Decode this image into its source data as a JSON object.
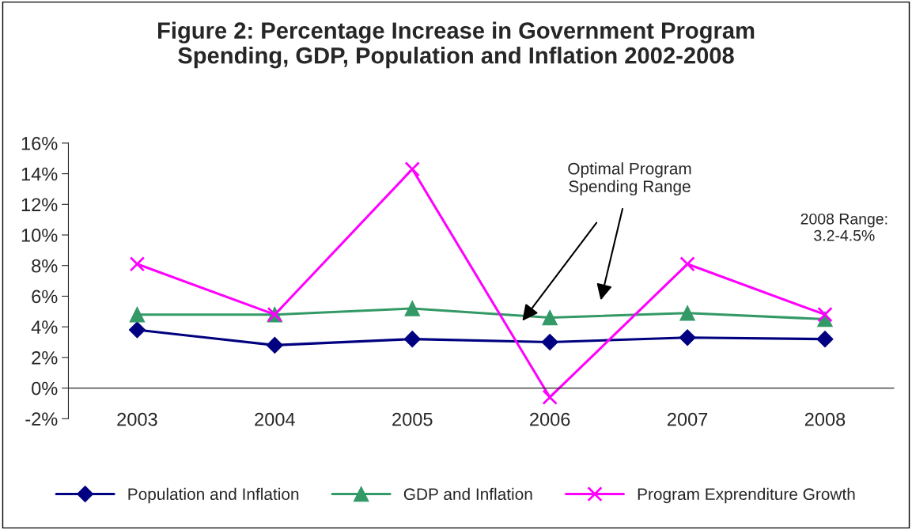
{
  "chart_data": {
    "type": "line",
    "title": "Figure 2: Percentage Increase in Government Program\nSpending, GDP, Population and Inflation 2002-2008",
    "categories": [
      "2003",
      "2004",
      "2005",
      "2006",
      "2007",
      "2008"
    ],
    "series": [
      {
        "name": "Population and Inflation",
        "color": "#000080",
        "marker": "diamond",
        "values": [
          3.8,
          2.8,
          3.2,
          3.0,
          3.3,
          3.2
        ]
      },
      {
        "name": "GDP and Inflation",
        "color": "#339966",
        "marker": "triangle",
        "values": [
          4.8,
          4.8,
          5.2,
          4.6,
          4.9,
          4.5
        ]
      },
      {
        "name": "Program Exprenditure Growth",
        "color": "#ff00ff",
        "marker": "cross",
        "values": [
          8.1,
          4.8,
          14.3,
          -0.6,
          8.1,
          4.8
        ]
      }
    ],
    "ylim": [
      -2,
      16
    ],
    "yticks": [
      {
        "value": -2,
        "label": "-2%"
      },
      {
        "value": 0,
        "label": "0%"
      },
      {
        "value": 2,
        "label": "2%"
      },
      {
        "value": 4,
        "label": "4%"
      },
      {
        "value": 6,
        "label": "6%"
      },
      {
        "value": 8,
        "label": "8%"
      },
      {
        "value": 10,
        "label": "10%"
      },
      {
        "value": 12,
        "label": "12%"
      },
      {
        "value": 14,
        "label": "14%"
      },
      {
        "value": 16,
        "label": "16%"
      }
    ],
    "annotations": [
      "Optimal Program\nSpending Range",
      "2008 Range:\n3.2-4.5%"
    ],
    "grid": false,
    "legend": "bottom",
    "line_style": "solid"
  }
}
